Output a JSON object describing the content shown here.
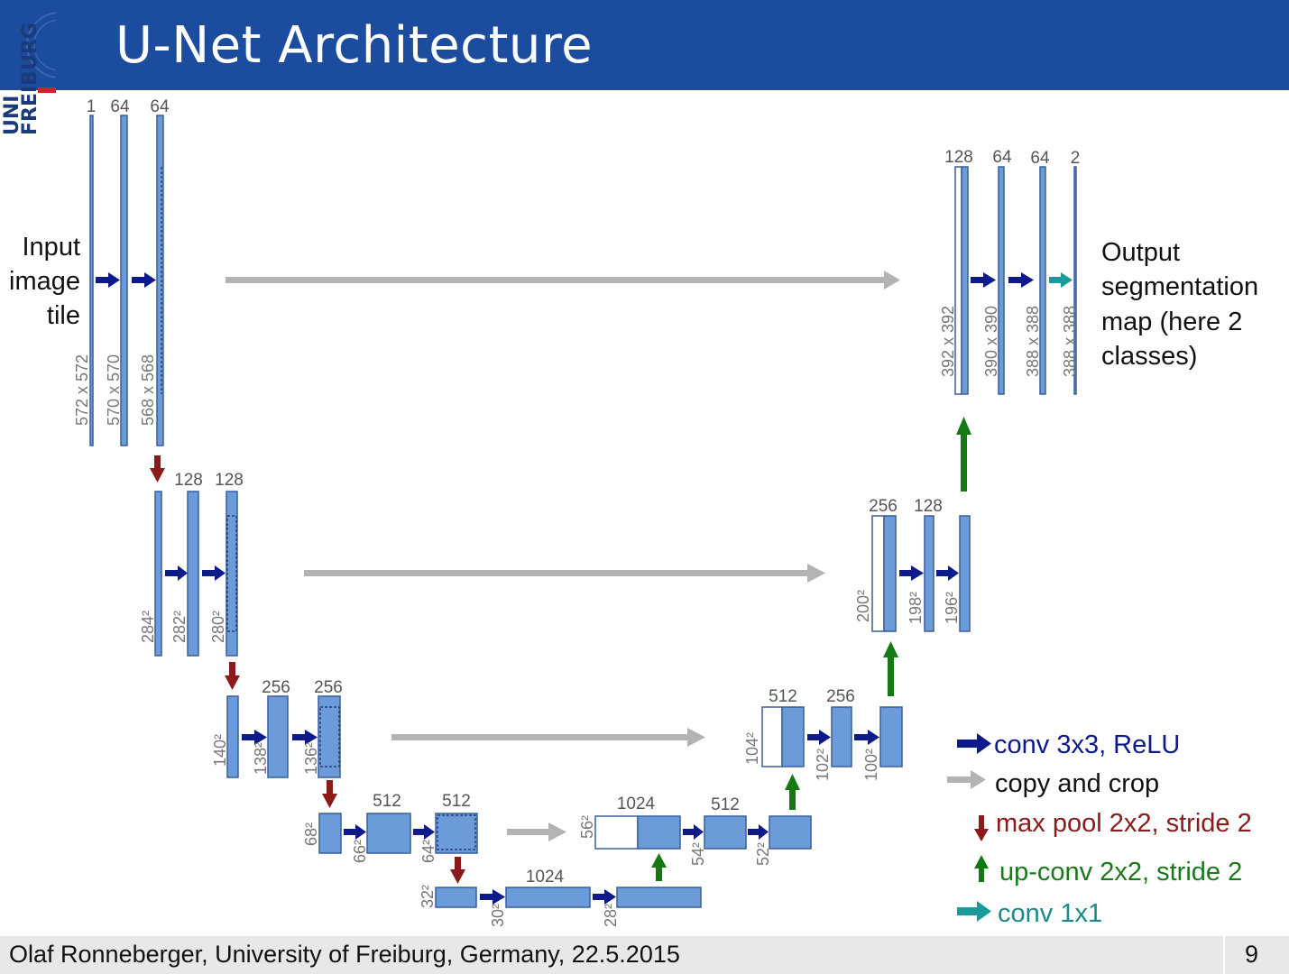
{
  "title": "U-Net Architecture",
  "logo": {
    "line1": "UNI",
    "line2": "FREIBURG"
  },
  "footer": {
    "text": "Olaf Ronneberger, University of Freiburg, Germany, 22.5.2015",
    "page": "9"
  },
  "labels": {
    "input": [
      "Input",
      "image",
      "tile"
    ],
    "output": [
      "Output",
      "segmentation",
      "map (here 2",
      "classes)"
    ]
  },
  "legend": [
    {
      "text": "conv 3x3, ReLU",
      "color": "#0d1a8a",
      "arrow": "right"
    },
    {
      "text": "copy and crop",
      "color": "#111111",
      "arrow": "gray"
    },
    {
      "text": "max pool 2x2, stride 2",
      "color": "#8b1a1a",
      "arrow": "down"
    },
    {
      "text": "up-conv 2x2, stride 2",
      "color": "#1a7a1a",
      "arrow": "up"
    },
    {
      "text": "conv 1x1",
      "color": "#1a8a8a",
      "arrow": "teal"
    }
  ],
  "channels": {
    "l1": [
      "1",
      "64",
      "64"
    ],
    "l2": [
      "128",
      "128"
    ],
    "l3": [
      "256",
      "256"
    ],
    "l4": [
      "512",
      "512"
    ],
    "l5": [
      "1024"
    ],
    "u4": [
      "1024",
      "512"
    ],
    "u3": [
      "512",
      "256"
    ],
    "u2": [
      "256",
      "128"
    ],
    "u1": [
      "128",
      "64",
      "64",
      "2"
    ]
  },
  "sizes": {
    "l1": [
      "572 x 572",
      "570 x 570",
      "568 x 568"
    ],
    "l2": [
      "284²",
      "282²",
      "280²"
    ],
    "l3": [
      "140²",
      "138²",
      "136²"
    ],
    "l4": [
      "68²",
      "66²",
      "64²"
    ],
    "l5": [
      "32²",
      "30²",
      "28²"
    ],
    "u4": [
      "56²",
      "54²",
      "52²"
    ],
    "u3": [
      "104²",
      "102²",
      "100²"
    ],
    "u2": [
      "200²",
      "198²",
      "196²"
    ],
    "u1": [
      "392 x 392",
      "390 x 390",
      "388 x 388",
      "388 x 388"
    ]
  },
  "colors": {
    "header": "#1b4c9e",
    "block": "#6b9bd8",
    "blockStroke": "#3a5f9a",
    "gray": "#b3b3b3"
  }
}
